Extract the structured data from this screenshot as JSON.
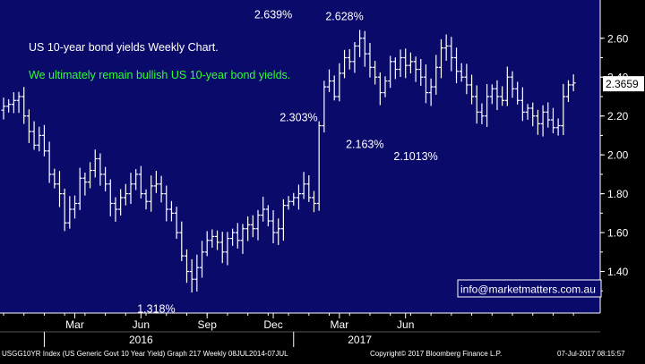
{
  "colors": {
    "plot_bg": "#0a0a6b",
    "frame": "#ffffff",
    "bars": "#ffffff",
    "title_text": "#ffffff",
    "subtitle_text": "#2eff2e",
    "email_text": "#ffffff",
    "footer_text": "#ffffff",
    "page_bg": "#000000"
  },
  "footer": {
    "left": "USGG10YR Index (US Generic Govt 10 Year Yield) Graph 217  Weekly 08JUL2014-07JUL",
    "mid": "Copyright© 2017 Bloomberg Finance L.P.",
    "right": "07-Jul-2017 08:15:57"
  },
  "chart_data": {
    "type": "ohlc",
    "title": "US 10-year bond yields Weekly Chart.",
    "subtitle": "We ultimately remain bullish US 10-year bond yields.",
    "watermark": "info@marketmatters.com.au",
    "ylabel": "",
    "xlabel": "",
    "y_axis_side": "right",
    "grid": false,
    "ylim": [
      1.2,
      2.76
    ],
    "yticks": [
      "2.60",
      "2.40",
      "2.20",
      "2.00",
      "1.80",
      "1.60",
      "1.40"
    ],
    "xticks": [
      {
        "label": "Mar",
        "week": 14
      },
      {
        "label": "Jun",
        "week": 27
      },
      {
        "label": "Sep",
        "week": 40
      },
      {
        "label": "Dec",
        "week": 53
      },
      {
        "label": "Mar",
        "week": 66
      },
      {
        "label": "Jun",
        "week": 79
      }
    ],
    "years": [
      {
        "label": "2016",
        "week": 27
      },
      {
        "label": "2017",
        "week": 70
      }
    ],
    "year_boundaries": [
      {
        "week": 8
      },
      {
        "week": 57
      }
    ],
    "last_value_label": "2.3659",
    "last_value": 2.3659,
    "annotations": [
      {
        "text": "2.639%",
        "week": 53,
        "value": 2.639,
        "position": "above"
      },
      {
        "text": "2.628%",
        "week": 67,
        "value": 2.628,
        "position": "above"
      },
      {
        "text": "2.303%",
        "week": 58,
        "value": 2.303,
        "position": "below"
      },
      {
        "text": "2.163%",
        "week": 71,
        "value": 2.163,
        "position": "below"
      },
      {
        "text": "2.1013%",
        "week": 81,
        "value": 2.1013,
        "position": "below"
      },
      {
        "text": "1.318%",
        "week": 30,
        "value": 1.318,
        "position": "below"
      }
    ],
    "close": [
      2.25,
      2.26,
      2.28,
      2.3,
      2.2,
      2.12,
      2.05,
      2.1,
      2.02,
      1.9,
      1.85,
      1.8,
      1.65,
      1.72,
      1.75,
      1.88,
      1.86,
      1.92,
      1.98,
      1.9,
      1.85,
      1.75,
      1.72,
      1.78,
      1.8,
      1.85,
      1.9,
      1.8,
      1.76,
      1.84,
      1.85,
      1.8,
      1.72,
      1.7,
      1.6,
      1.48,
      1.4,
      1.36,
      1.42,
      1.5,
      1.56,
      1.58,
      1.55,
      1.5,
      1.57,
      1.6,
      1.56,
      1.62,
      1.64,
      1.62,
      1.69,
      1.72,
      1.66,
      1.6,
      1.62,
      1.74,
      1.76,
      1.78,
      1.8,
      1.85,
      1.78,
      1.75,
      2.15,
      2.35,
      2.38,
      2.3,
      2.42,
      2.5,
      2.48,
      2.56,
      2.6,
      2.52,
      2.45,
      2.4,
      2.32,
      2.38,
      2.48,
      2.44,
      2.5,
      2.46,
      2.48,
      2.44,
      2.4,
      2.32,
      2.35,
      2.45,
      2.55,
      2.56,
      2.5,
      2.43,
      2.4,
      2.36,
      2.3,
      2.22,
      2.2,
      2.3,
      2.34,
      2.3,
      2.28,
      2.4,
      2.34,
      2.28,
      2.22,
      2.24,
      2.2,
      2.16,
      2.22,
      2.18,
      2.14,
      2.15,
      2.3,
      2.36,
      2.37
    ]
  }
}
